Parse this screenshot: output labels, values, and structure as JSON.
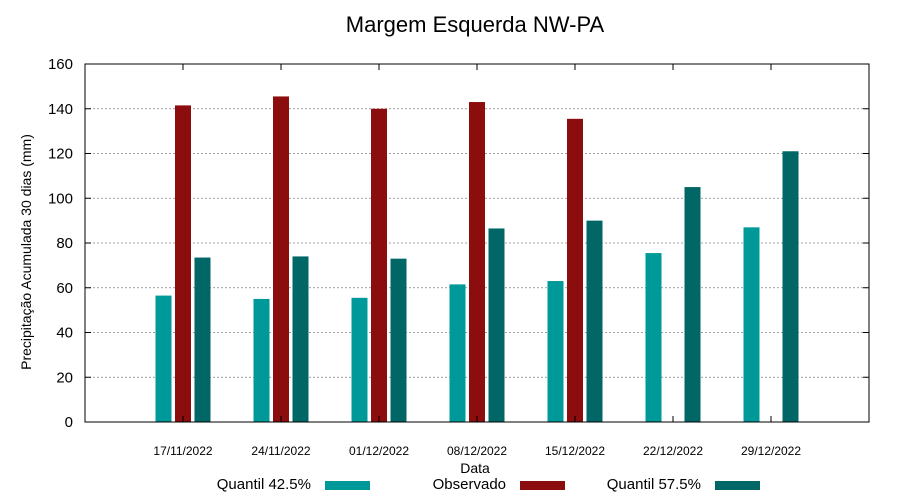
{
  "chart_data": {
    "type": "bar",
    "title": "Margem Esquerda NW-PA",
    "xlabel": "Data",
    "ylabel": "Precipitação Acumulada 30 dias (mm)",
    "ylim": [
      0,
      160
    ],
    "yticks": [
      "0",
      "20",
      "40",
      "60",
      "80",
      "100",
      "120",
      "140",
      "160"
    ],
    "grid": true,
    "legend_position": "bottom",
    "categories": [
      "17/11/2022",
      "24/11/2022",
      "01/12/2022",
      "08/12/2022",
      "15/12/2022",
      "22/12/2022",
      "29/12/2022"
    ],
    "series": [
      {
        "name": "Quantil 42.5%",
        "color": "#009999",
        "values": [
          56.5,
          55,
          55.5,
          61.5,
          63,
          75.5,
          87
        ]
      },
      {
        "name": "Observado",
        "color": "#8b0d0d",
        "values": [
          141.5,
          145.5,
          140,
          143,
          135.5,
          null,
          null
        ]
      },
      {
        "name": "Quantil 57.5%",
        "color": "#006666",
        "values": [
          73.5,
          74,
          73,
          86.5,
          90,
          105,
          121
        ]
      }
    ]
  }
}
